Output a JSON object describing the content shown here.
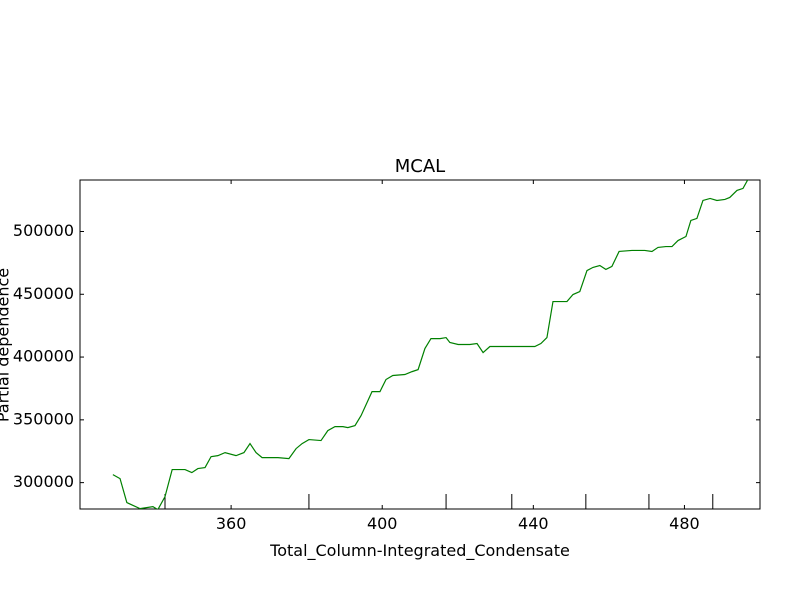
{
  "chart_data": {
    "type": "line",
    "title": "MCAL",
    "xlabel": "Total_Column-Integrated_Condensate",
    "ylabel": "Partial dependence",
    "color": "#008000",
    "x": [
      328.7,
      330.6,
      332.4,
      335.9,
      339.3,
      340.6,
      342.5,
      344.4,
      347.8,
      349.6,
      351.2,
      353.1,
      354.7,
      356.5,
      358.4,
      361.3,
      363.4,
      365.0,
      366.6,
      368.2,
      372.4,
      375.3,
      377.2,
      378.8,
      380.6,
      383.8,
      385.6,
      387.5,
      389.6,
      390.9,
      392.8,
      394.4,
      397.3,
      399.4,
      401.0,
      402.8,
      406.0,
      407.9,
      409.5,
      411.3,
      412.9,
      415.3,
      416.9,
      417.9,
      420.1,
      423.2,
      425.1,
      426.7,
      428.5,
      431.2,
      436.5,
      440.4,
      442.0,
      443.6,
      445.2,
      448.9,
      450.5,
      452.3,
      454.2,
      455.8,
      457.6,
      459.2,
      460.8,
      462.7,
      466.1,
      469.5,
      471.4,
      473.0,
      475.1,
      476.7,
      478.3,
      480.4,
      481.7,
      483.3,
      484.9,
      486.8,
      488.6,
      490.7,
      492.0,
      493.9,
      495.5,
      497.1
    ],
    "values": [
      306400,
      303200,
      284100,
      279300,
      280900,
      278500,
      288800,
      310400,
      310400,
      308000,
      311200,
      312000,
      320700,
      321500,
      323900,
      321500,
      323900,
      331100,
      323900,
      319900,
      319900,
      319100,
      327100,
      331100,
      334300,
      333500,
      341400,
      344600,
      344600,
      343800,
      345400,
      353400,
      372500,
      372500,
      382100,
      385300,
      386100,
      388400,
      390000,
      406800,
      414700,
      414700,
      415500,
      411600,
      410000,
      410000,
      410800,
      403600,
      408400,
      408400,
      408400,
      408400,
      410800,
      415500,
      444200,
      444200,
      449800,
      452200,
      468900,
      471400,
      472900,
      469800,
      472200,
      484100,
      484900,
      484900,
      484100,
      487300,
      488000,
      488000,
      492800,
      496000,
      508800,
      510400,
      524700,
      526300,
      524700,
      525500,
      527100,
      532700,
      534300,
      543000
    ],
    "deciles": [
      342.5,
      380.6,
      416.9,
      434.3,
      453.9,
      470.6,
      487.5
    ],
    "xlim": [
      320,
      500
    ],
    "ylim": [
      279000,
      541000
    ],
    "xticks": [
      360,
      400,
      440,
      480
    ],
    "yticks": [
      300000,
      350000,
      400000,
      450000,
      500000
    ]
  }
}
